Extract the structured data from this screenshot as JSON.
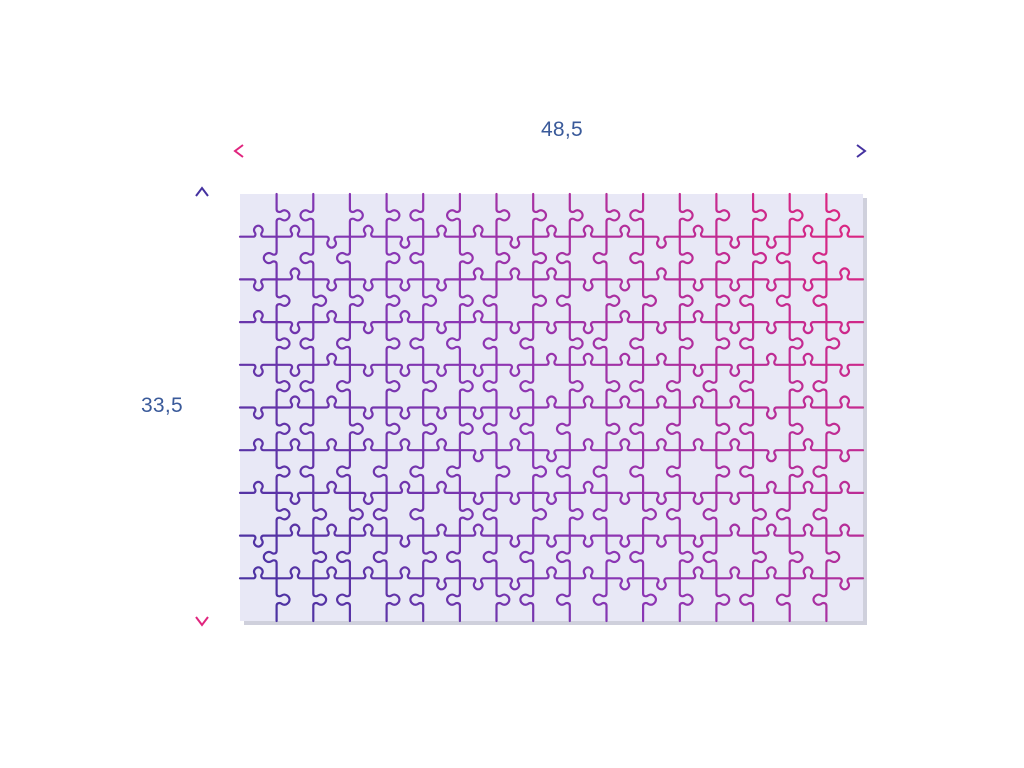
{
  "dimensions": {
    "width_label": "48,5",
    "height_label": "33,5"
  },
  "puzzle": {
    "columns": 17,
    "rows": 10,
    "board_color": "#e8e8f6",
    "shadow_color": "#cfd0dc"
  },
  "colors": {
    "pink": "#e0257e",
    "violet": "#8a36b4",
    "indigo": "#4532a0",
    "label_blue": "#3a5a9a"
  },
  "icons": [
    "double-arrow-horizontal",
    "double-arrow-vertical"
  ]
}
